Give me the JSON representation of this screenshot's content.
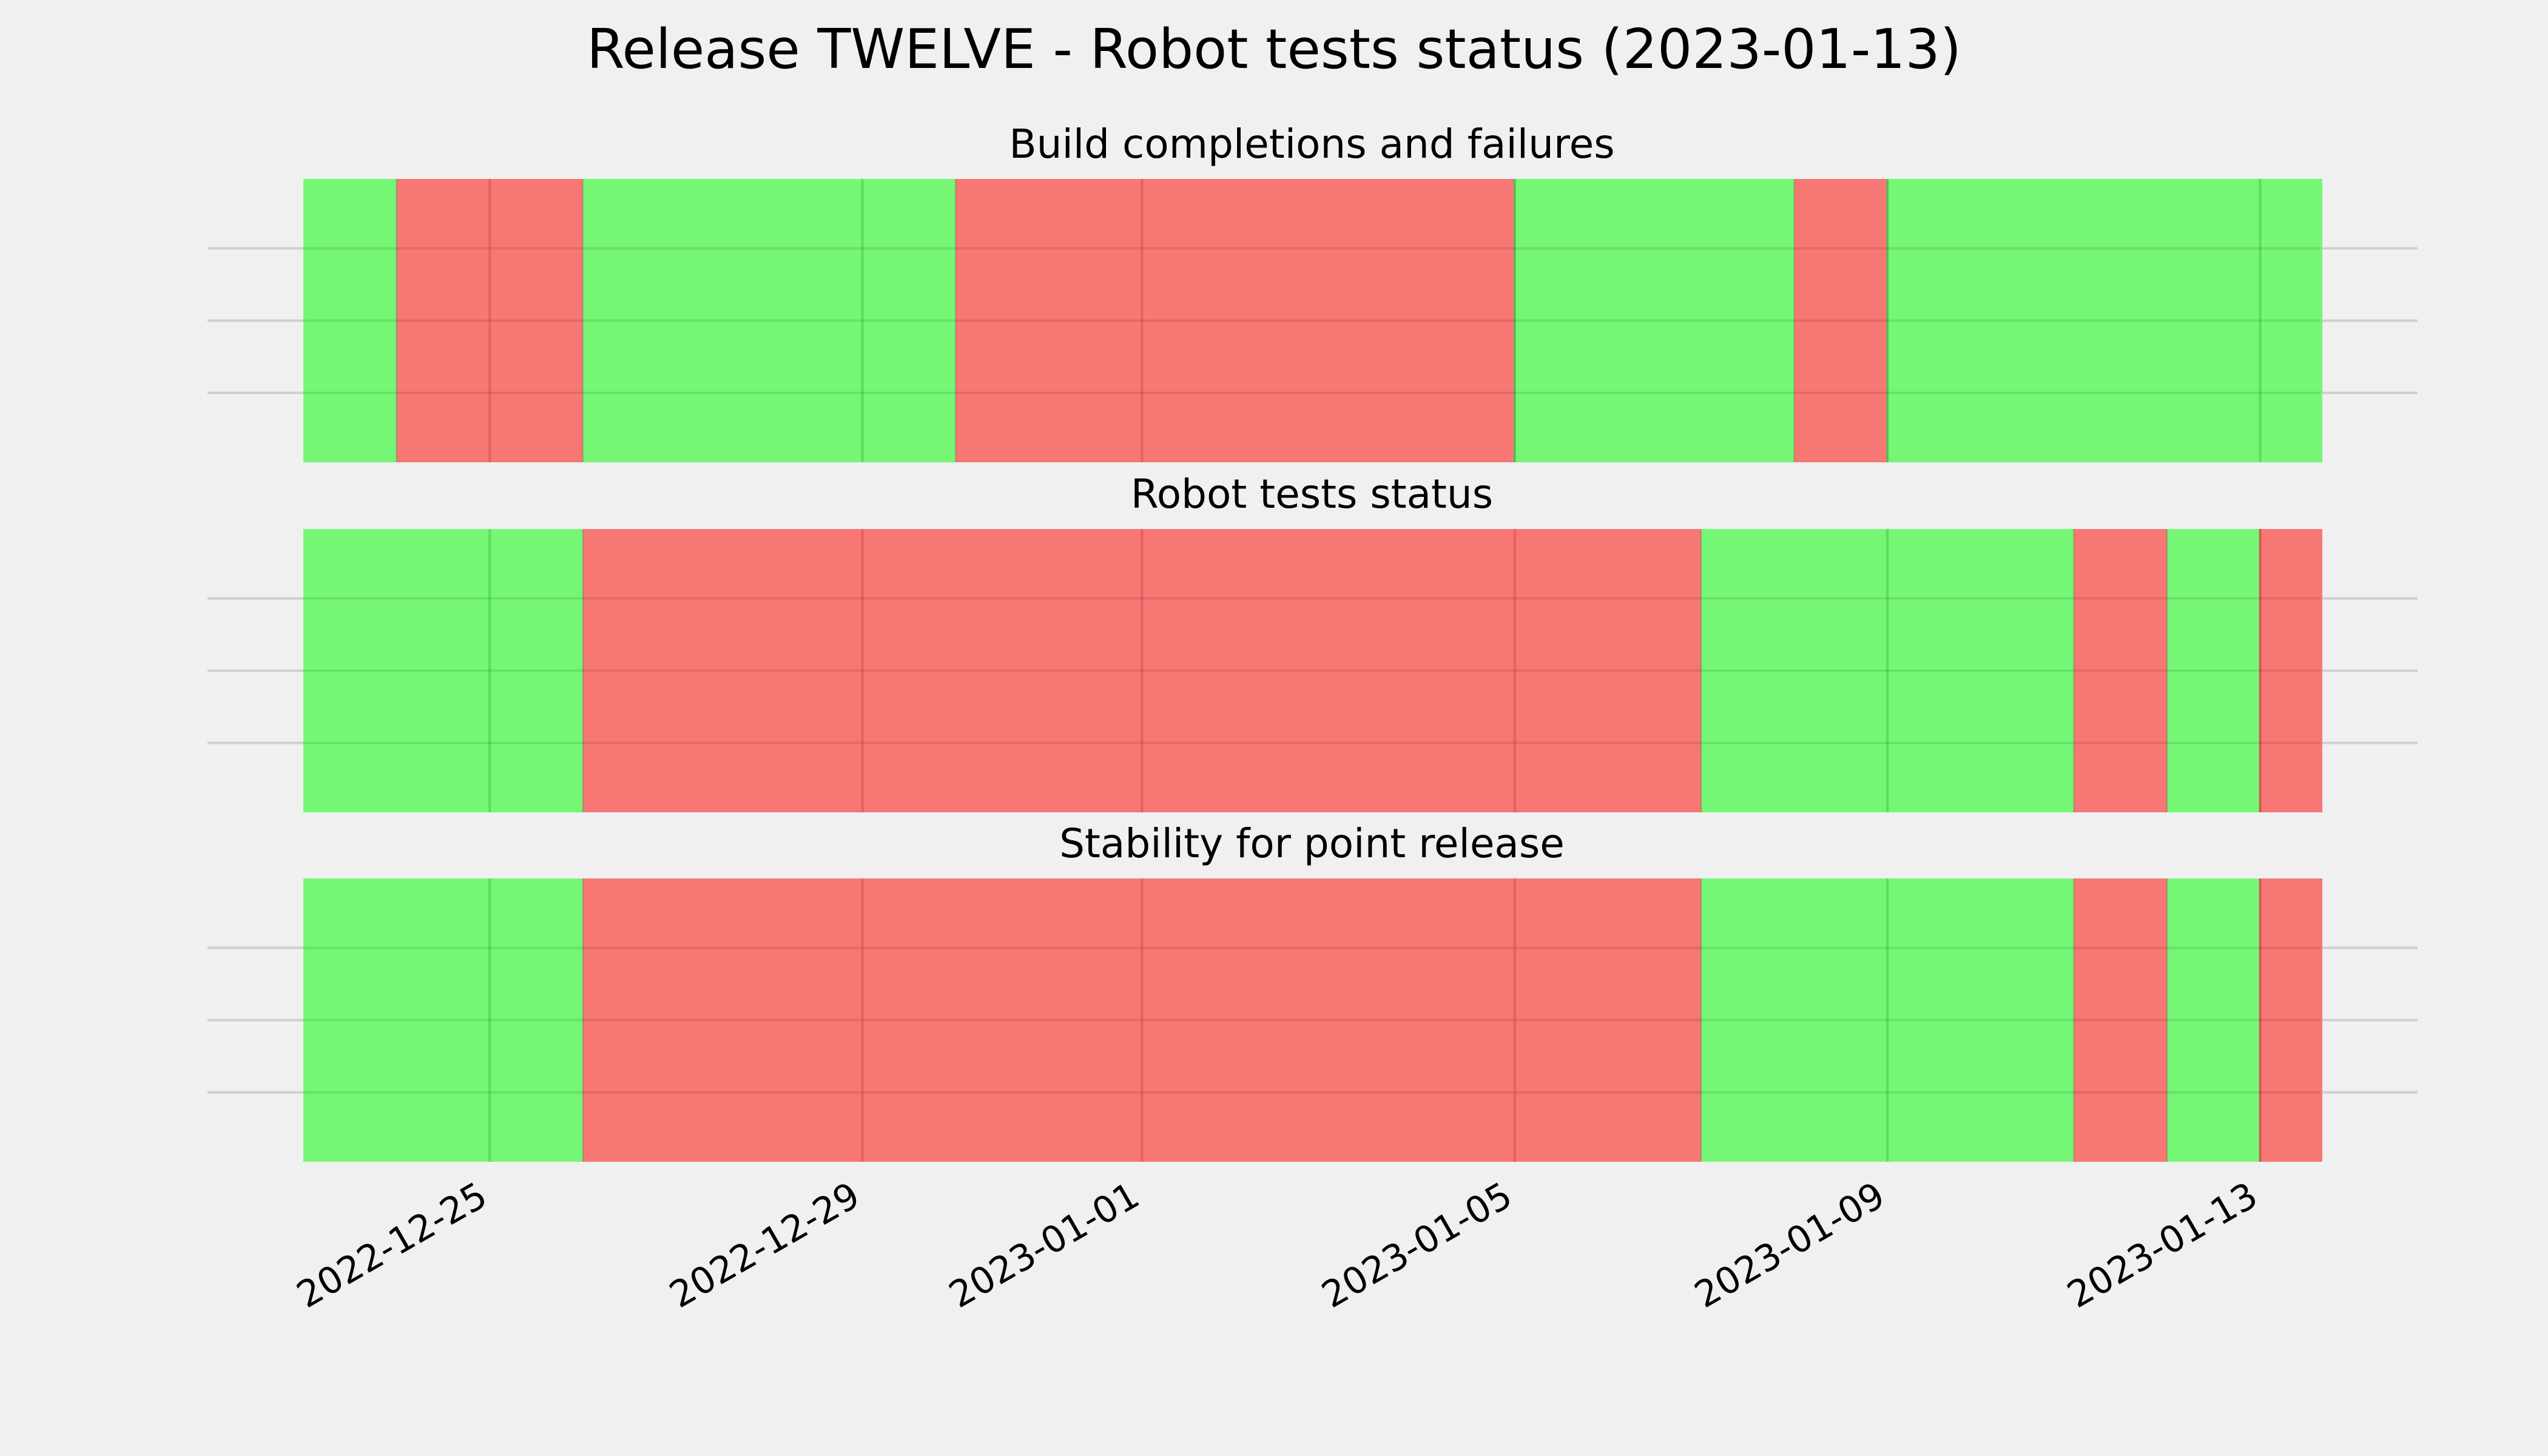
{
  "figure": {
    "title": "Release TWELVE - Robot tests status (2023-01-13)",
    "background_color": "#f0f0f0"
  },
  "colors": {
    "pass": "#75f775",
    "fail": "#f77775",
    "hgrid": "#cfcfcf",
    "vgrid_on_pass": "#55d45a",
    "vgrid_on_fail": "#e35a5a"
  },
  "chart_data": [
    {
      "type": "area",
      "title": "Build completions and failures",
      "xlabel": "",
      "ylabel": "",
      "xlim": [
        "2022-12-23",
        "2023-01-13 16:00"
      ],
      "grid": true,
      "segments": [
        {
          "start": "2022-12-23",
          "end": "2022-12-24",
          "status": "pass"
        },
        {
          "start": "2022-12-24",
          "end": "2022-12-26",
          "status": "fail"
        },
        {
          "start": "2022-12-26",
          "end": "2022-12-30",
          "status": "pass"
        },
        {
          "start": "2022-12-30",
          "end": "2023-01-05",
          "status": "fail"
        },
        {
          "start": "2023-01-05",
          "end": "2023-01-08",
          "status": "pass"
        },
        {
          "start": "2023-01-08",
          "end": "2023-01-09",
          "status": "fail"
        },
        {
          "start": "2023-01-09",
          "end": "2023-01-13 16:00",
          "status": "pass"
        }
      ]
    },
    {
      "type": "area",
      "title": "Robot tests status",
      "xlabel": "",
      "ylabel": "",
      "xlim": [
        "2022-12-23",
        "2023-01-13 16:00"
      ],
      "grid": true,
      "segments": [
        {
          "start": "2022-12-23",
          "end": "2022-12-26",
          "status": "pass"
        },
        {
          "start": "2022-12-26",
          "end": "2023-01-07",
          "status": "fail"
        },
        {
          "start": "2023-01-07",
          "end": "2023-01-11",
          "status": "pass"
        },
        {
          "start": "2023-01-11",
          "end": "2023-01-12",
          "status": "fail"
        },
        {
          "start": "2023-01-12",
          "end": "2023-01-13",
          "status": "pass"
        },
        {
          "start": "2023-01-13",
          "end": "2023-01-13 16:00",
          "status": "fail"
        }
      ]
    },
    {
      "type": "area",
      "title": "Stability for point release",
      "xlabel": "",
      "ylabel": "",
      "xlim": [
        "2022-12-23",
        "2023-01-13 16:00"
      ],
      "grid": true,
      "segments": [
        {
          "start": "2022-12-23",
          "end": "2022-12-26",
          "status": "pass"
        },
        {
          "start": "2022-12-26",
          "end": "2023-01-07",
          "status": "fail"
        },
        {
          "start": "2023-01-07",
          "end": "2023-01-11",
          "status": "pass"
        },
        {
          "start": "2023-01-11",
          "end": "2023-01-12",
          "status": "fail"
        },
        {
          "start": "2023-01-12",
          "end": "2023-01-13",
          "status": "pass"
        },
        {
          "start": "2023-01-13",
          "end": "2023-01-13 16:00",
          "status": "fail"
        }
      ]
    }
  ],
  "x_ticks": [
    "2022-12-25",
    "2022-12-29",
    "2023-01-01",
    "2023-01-05",
    "2023-01-09",
    "2023-01-13"
  ]
}
